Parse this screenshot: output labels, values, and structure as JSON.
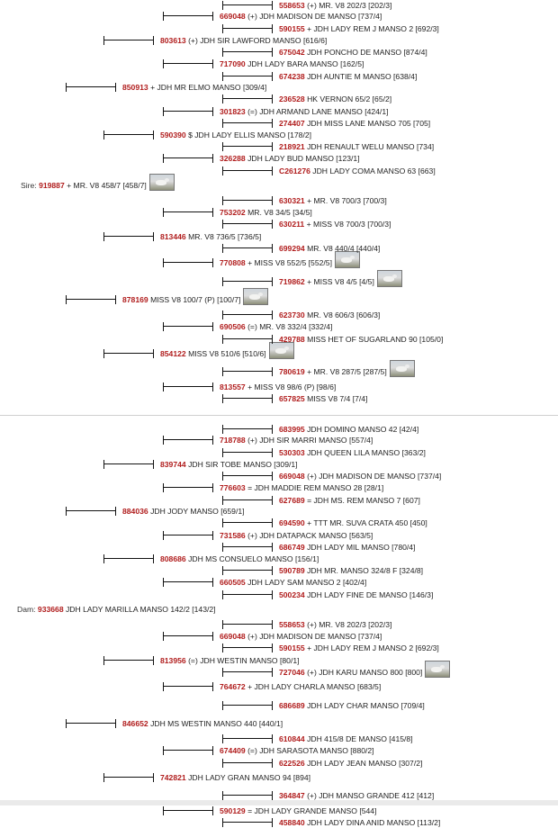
{
  "sire": {
    "label": "Sire:",
    "reg": "919887",
    "name": "+ MR. V8 458/7",
    "epd": "[458/7]",
    "sub": [
      {
        "reg": "850913",
        "name": "+ JDH MR ELMO MANSO",
        "epd": "[309/4]",
        "kids": [
          {
            "reg": "803613",
            "name": "(+) JDH SIR LAWFORD MANSO",
            "epd": "[616/6]",
            "kids": [
              {
                "reg": "669048",
                "name": "(+) JDH MADISON DE MANSO",
                "epd": "[737/4]",
                "kids": [
                  {
                    "reg": "558653",
                    "name": "(+) MR. V8 202/3",
                    "epd": "[202/3]"
                  },
                  {
                    "reg": "590155",
                    "name": "+ JDH LADY REM J MANSO 2",
                    "epd": "[692/3]"
                  }
                ]
              },
              {
                "reg": "717090",
                "name": "JDH LADY BARA MANSO",
                "epd": "[162/5]",
                "kids": [
                  {
                    "reg": "675042",
                    "name": "JDH PONCHO DE MANSO",
                    "epd": "[874/4]"
                  },
                  {
                    "reg": "674238",
                    "name": "JDH AUNTIE M MANSO",
                    "epd": "[638/4]"
                  }
                ]
              }
            ]
          },
          {
            "reg": "590390",
            "name": "$ JDH LADY ELLIS MANSO",
            "epd": "[178/2]",
            "kids": [
              {
                "reg": "301823",
                "name": "(=) JDH ARMAND LANE MANSO",
                "epd": "[424/1]",
                "kids": [
                  {
                    "reg": "236528",
                    "name": "HK VERNON 65/2",
                    "epd": "[65/2]"
                  },
                  {
                    "reg": "274407",
                    "name": "JDH MISS LANE MANSO 705",
                    "epd": "[705]"
                  }
                ]
              },
              {
                "reg": "326288",
                "name": "JDH LADY BUD MANSO",
                "epd": "[123/1]",
                "kids": [
                  {
                    "reg": "218921",
                    "name": "JDH RENAULT WELU MANSO",
                    "epd": "[734]"
                  },
                  {
                    "reg": "C261276",
                    "name": "JDH LADY COMA MANSO 63",
                    "epd": "[663]"
                  }
                ]
              }
            ]
          }
        ]
      },
      {
        "reg": "878169",
        "name": "MISS V8 100/7 (P)",
        "epd": "[100/7]",
        "kids": [
          {
            "reg": "813446",
            "name": "MR. V8 736/5",
            "epd": "[736/5]",
            "kids": [
              {
                "reg": "753202",
                "name": "MR. V8 34/5",
                "epd": "[34/5]",
                "kids": [
                  {
                    "reg": "630321",
                    "name": "+ MR. V8 700/3",
                    "epd": "[700/3]"
                  },
                  {
                    "reg": "630211",
                    "name": "+ MISS V8 700/3",
                    "epd": "[700/3]"
                  }
                ]
              },
              {
                "reg": "770808",
                "name": "+ MISS V8 552/5",
                "epd": "[552/5]",
                "kids": [
                  {
                    "reg": "699294",
                    "name": "MR. V8 440/4",
                    "epd": "[440/4]"
                  },
                  {
                    "reg": "719862",
                    "name": "+ MISS V8 4/5",
                    "epd": "[4/5]"
                  }
                ]
              }
            ]
          },
          {
            "reg": "854122",
            "name": "MISS V8 510/6",
            "epd": "[510/6]",
            "kids": [
              {
                "reg": "690506",
                "name": "(=) MR. V8 332/4",
                "epd": "[332/4]",
                "kids": [
                  {
                    "reg": "623730",
                    "name": "MR. V8 606/3",
                    "epd": "[606/3]"
                  },
                  {
                    "reg": "429788",
                    "name": "MISS HET OF SUGARLAND 90",
                    "epd": "[105/0]"
                  }
                ]
              },
              {
                "reg": "813557",
                "name": "+ MISS V8 98/6 (P)",
                "epd": "[98/6]",
                "kids": [
                  {
                    "reg": "780619",
                    "name": "+ MR. V8 287/5",
                    "epd": "[287/5]"
                  },
                  {
                    "reg": "657825",
                    "name": "MISS V8 7/4",
                    "epd": "[7/4]"
                  }
                ]
              }
            ]
          }
        ]
      }
    ]
  },
  "dam": {
    "label": "Dam:",
    "reg": "933668",
    "name": "JDH LADY MARILLA MANSO 142/2",
    "epd": "[143/2]",
    "sub": [
      {
        "reg": "884036",
        "name": "JDH JODY MANSO",
        "epd": "[659/1]",
        "kids": [
          {
            "reg": "839744",
            "name": "JDH SIR TOBE MANSO",
            "epd": "[309/1]",
            "kids": [
              {
                "reg": "718788",
                "name": "(+) JDH SIR MARRI MANSO",
                "epd": "[557/4]",
                "kids": [
                  {
                    "reg": "683995",
                    "name": "JDH DOMINO MANSO 42",
                    "epd": "[42/4]"
                  },
                  {
                    "reg": "530303",
                    "name": "JDH QUEEN LILA MANSO",
                    "epd": "[363/2]"
                  }
                ]
              },
              {
                "reg": "776603",
                "name": "= JDH MADDIE REM MANSO 28",
                "epd": "[28/1]",
                "kids": [
                  {
                    "reg": "669048",
                    "name": "(+) JDH MADISON DE MANSO",
                    "epd": "[737/4]"
                  },
                  {
                    "reg": "627689",
                    "name": "= JDH MS. REM MANSO 7",
                    "epd": "[607]"
                  }
                ]
              }
            ]
          },
          {
            "reg": "808686",
            "name": "JDH MS CONSUELO MANSO",
            "epd": "[156/1]",
            "kids": [
              {
                "reg": "731586",
                "name": "(+) JDH DATAPACK MANSO",
                "epd": "[563/5]",
                "kids": [
                  {
                    "reg": "694590",
                    "name": "+ TTT MR. SUVA CRATA 450",
                    "epd": "[450]"
                  },
                  {
                    "reg": "686749",
                    "name": "JDH LADY MIL MANSO",
                    "epd": "[780/4]"
                  }
                ]
              },
              {
                "reg": "660505",
                "name": "JDH LADY SAM MANSO 2",
                "epd": "[402/4]",
                "kids": [
                  {
                    "reg": "590789",
                    "name": "JDH MR. MANSO 324/8 F",
                    "epd": "[324/8]"
                  },
                  {
                    "reg": "500234",
                    "name": "JDH LADY FINE DE MANSO",
                    "epd": "[146/3]"
                  }
                ]
              }
            ]
          }
        ]
      },
      {
        "reg": "846652",
        "name": "JDH MS WESTIN MANSO 440",
        "epd": "[440/1]",
        "kids": [
          {
            "reg": "813956",
            "name": "(=) JDH WESTIN MANSO",
            "epd": "[80/1]",
            "kids": [
              {
                "reg": "669048",
                "name": "(+) JDH MADISON DE MANSO",
                "epd": "[737/4]",
                "kids": [
                  {
                    "reg": "558653",
                    "name": "(+) MR. V8 202/3",
                    "epd": "[202/3]"
                  },
                  {
                    "reg": "590155",
                    "name": "+ JDH LADY REM J MANSO 2",
                    "epd": "[692/3]"
                  }
                ]
              },
              {
                "reg": "764672",
                "name": "+ JDH LADY CHARLA MANSO",
                "epd": "[683/5]",
                "kids": [
                  {
                    "reg": "727046",
                    "name": "(+) JDH KARU MANSO 800",
                    "epd": "[800]"
                  },
                  {
                    "reg": "686689",
                    "name": "JDH LADY CHAR MANSO",
                    "epd": "[709/4]"
                  }
                ]
              }
            ]
          },
          {
            "reg": "742821",
            "name": "JDH LADY GRAN MANSO 94",
            "epd": "[894]",
            "kids": [
              {
                "reg": "674409",
                "name": "(=) JDH SARASOTA MANSO",
                "epd": "[880/2]",
                "kids": [
                  {
                    "reg": "610844",
                    "name": "JDH 415/8 DE MANSO",
                    "epd": "[415/8]"
                  },
                  {
                    "reg": "622526",
                    "name": "JDH LADY JEAN MANSO",
                    "epd": "[307/2]"
                  }
                ]
              },
              {
                "reg": "590129",
                "name": "= JDH LADY GRANDE MANSO",
                "epd": "[544]",
                "kids": [
                  {
                    "reg": "364847",
                    "name": "(+) JDH MANSO GRANDE 412",
                    "epd": "[412]"
                  },
                  {
                    "reg": "458840",
                    "name": "JDH LADY DINA ANID MANSO",
                    "epd": "[113/2]"
                  }
                ]
              }
            ]
          }
        ]
      }
    ]
  }
}
